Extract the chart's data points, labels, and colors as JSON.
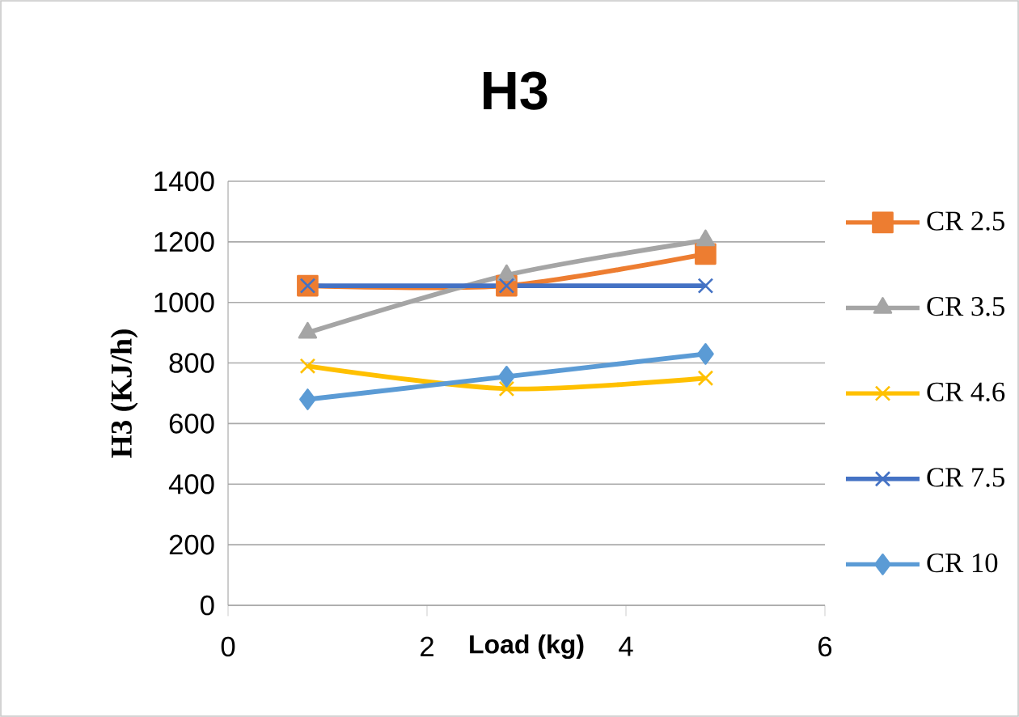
{
  "chart_data": {
    "type": "line",
    "title": "H3",
    "xlabel": "Load (kg)",
    "ylabel": "H3 (KJ/h)",
    "x": [
      0.8,
      2.8,
      4.8
    ],
    "xlim": [
      0,
      6
    ],
    "xticks": [
      0,
      2,
      4,
      6
    ],
    "ylim": [
      0,
      1400
    ],
    "yticks": [
      0,
      200,
      400,
      600,
      800,
      1000,
      1200,
      1400
    ],
    "grid": "y",
    "legend": "right",
    "series": [
      {
        "name": "CR 2.5",
        "color": "#ed7d31",
        "marker": "square",
        "values": [
          1055,
          1055,
          1160
        ]
      },
      {
        "name": "CR 3.5",
        "color": "#a5a5a5",
        "marker": "triangle",
        "values": [
          900,
          1090,
          1205
        ]
      },
      {
        "name": "CR 4.6",
        "color": "#ffc000",
        "marker": "cross",
        "values": [
          790,
          715,
          750
        ]
      },
      {
        "name": "CR 7.5",
        "color": "#4472c4",
        "marker": "cross",
        "values": [
          1055,
          1055,
          1055
        ]
      },
      {
        "name": "CR 10",
        "color": "#5b9bd5",
        "marker": "diamond",
        "values": [
          680,
          755,
          830
        ]
      }
    ]
  }
}
